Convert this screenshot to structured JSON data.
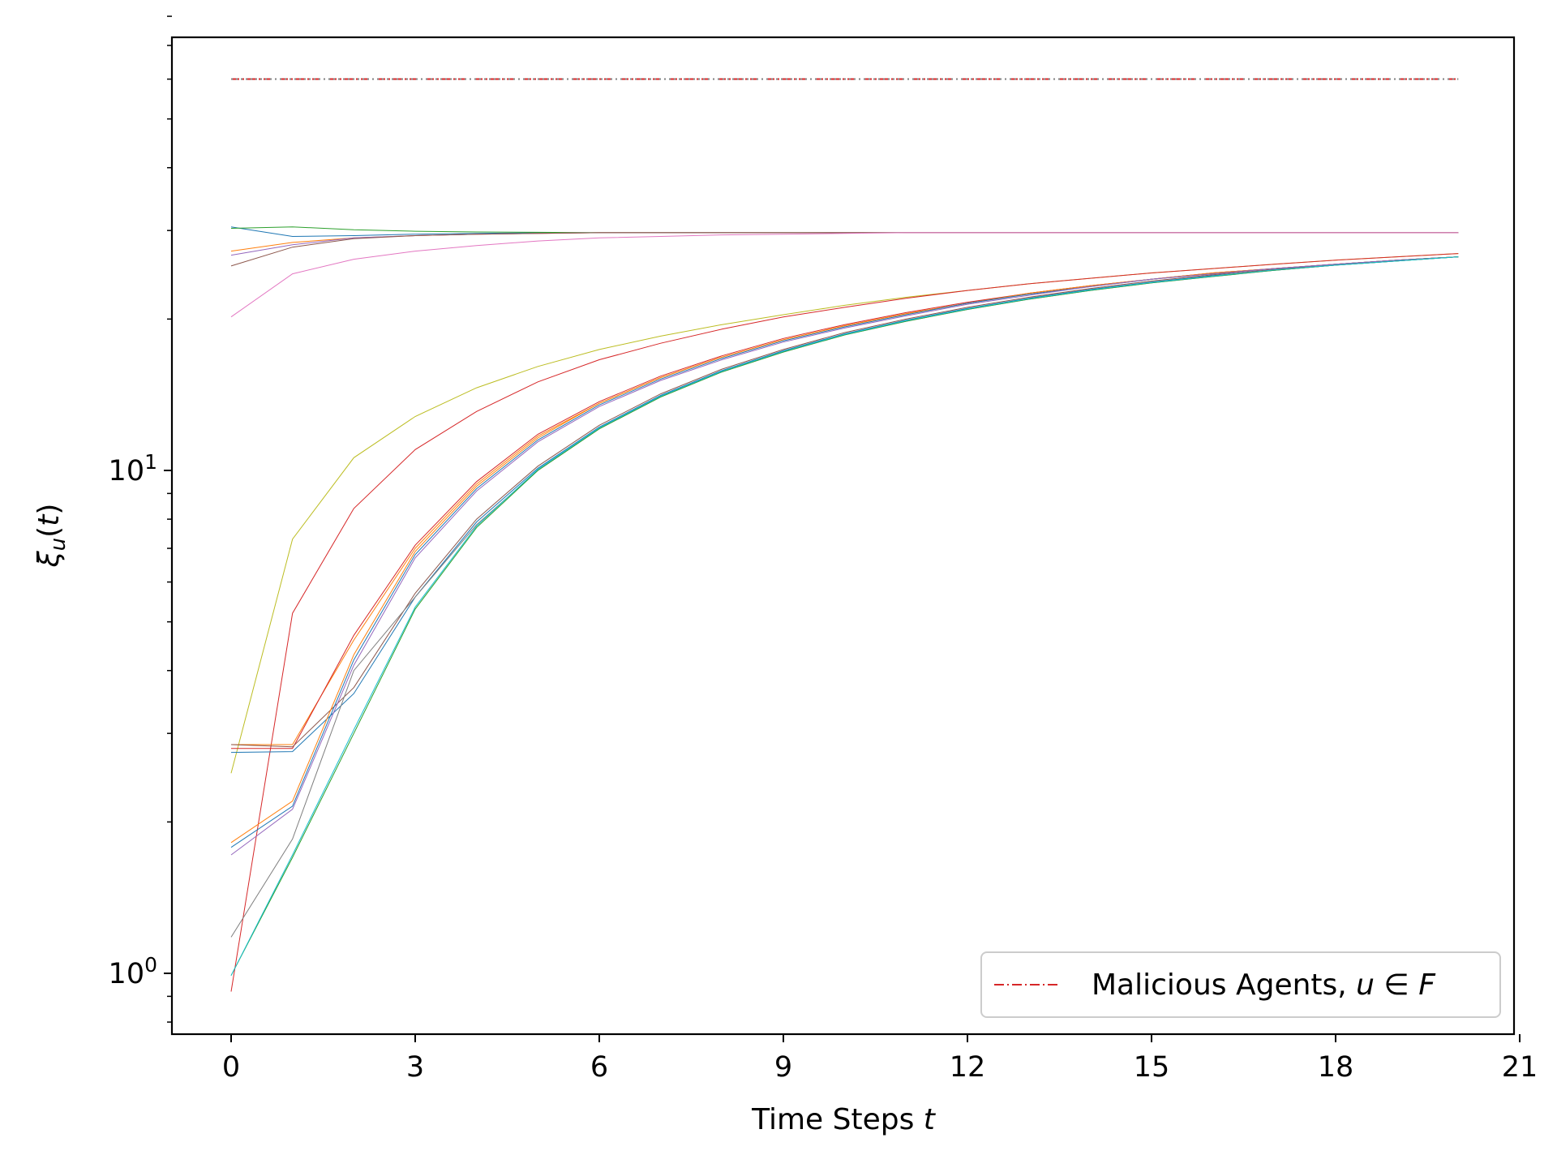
{
  "chart_data": {
    "type": "line",
    "title": "",
    "xlabel": "Time Steps t",
    "ylabel": "ξu(t)",
    "yscale": "log",
    "xlim": [
      -1,
      21
    ],
    "ylim": [
      0.78,
      94
    ],
    "xticks": [
      0,
      3,
      6,
      9,
      12,
      15,
      18,
      21
    ],
    "yticks": [
      {
        "value": 1,
        "base": "10",
        "exp": "0"
      },
      {
        "value": 10,
        "base": "10",
        "exp": "1"
      }
    ],
    "grid": false,
    "legend": {
      "placement": "lower-right",
      "entries": [
        {
          "label": "Malicious Agents, u ∈ F",
          "color": "#d62728",
          "style": "dash-dot"
        }
      ]
    },
    "x": [
      0,
      1,
      2,
      3,
      4,
      5,
      6,
      7,
      8,
      9,
      10,
      11,
      12,
      13,
      14,
      15,
      16,
      17,
      18,
      19,
      20
    ],
    "series": [
      {
        "color": "#d62728",
        "style": "dash-dot",
        "values": [
          60,
          60,
          60,
          60,
          60,
          60,
          60,
          60,
          60,
          60,
          60,
          60,
          60,
          60,
          60,
          60,
          60,
          60,
          60,
          60,
          60
        ]
      },
      {
        "color": "#7f7f7f",
        "style": "dotted",
        "values": [
          60,
          60,
          60,
          60,
          60,
          60,
          60,
          60,
          60,
          60,
          60,
          60,
          60,
          60,
          60,
          60,
          60,
          60,
          60,
          60,
          60
        ]
      },
      {
        "color": "#1f77b4",
        "values": [
          30.5,
          29.2,
          29.3,
          29.5,
          29.6,
          29.7,
          29.7,
          29.7,
          29.7,
          29.7,
          29.7,
          29.7,
          29.7,
          29.7,
          29.7,
          29.7,
          29.7,
          29.7,
          29.7,
          29.7,
          29.7
        ]
      },
      {
        "color": "#2ca02c",
        "values": [
          30.3,
          30.5,
          30.1,
          29.9,
          29.8,
          29.75,
          29.7,
          29.7,
          29.7,
          29.7,
          29.7,
          29.7,
          29.7,
          29.7,
          29.7,
          29.7,
          29.7,
          29.7,
          29.7,
          29.7,
          29.7
        ]
      },
      {
        "color": "#ff7f0e",
        "values": [
          27.3,
          28.4,
          29.0,
          29.3,
          29.5,
          29.6,
          29.7,
          29.7,
          29.7,
          29.7,
          29.7,
          29.7,
          29.7,
          29.7,
          29.7,
          29.7,
          29.7,
          29.7,
          29.7,
          29.7,
          29.7
        ]
      },
      {
        "color": "#9467bd",
        "values": [
          26.8,
          28.1,
          29.0,
          29.3,
          29.5,
          29.6,
          29.7,
          29.7,
          29.7,
          29.7,
          29.7,
          29.7,
          29.7,
          29.7,
          29.7,
          29.7,
          29.7,
          29.7,
          29.7,
          29.7,
          29.7
        ]
      },
      {
        "color": "#8c564b",
        "values": [
          25.5,
          27.8,
          28.9,
          29.3,
          29.5,
          29.6,
          29.7,
          29.7,
          29.7,
          29.7,
          29.7,
          29.7,
          29.7,
          29.7,
          29.7,
          29.7,
          29.7,
          29.7,
          29.7,
          29.7,
          29.7
        ]
      },
      {
        "color": "#e377c2",
        "values": [
          20.2,
          24.6,
          26.3,
          27.3,
          28.0,
          28.6,
          29.0,
          29.2,
          29.4,
          29.5,
          29.6,
          29.7,
          29.7,
          29.7,
          29.7,
          29.7,
          29.7,
          29.7,
          29.7,
          29.7,
          29.7
        ]
      },
      {
        "color": "#bcbd22",
        "values": [
          2.5,
          7.3,
          10.6,
          12.8,
          14.6,
          16.1,
          17.4,
          18.5,
          19.5,
          20.4,
          21.3,
          22.1,
          22.8,
          23.5,
          24.1,
          24.7,
          25.2,
          25.7,
          26.2,
          26.6,
          27.0
        ]
      },
      {
        "color": "#d62728",
        "values": [
          0.92,
          5.2,
          8.4,
          11.0,
          13.1,
          15.0,
          16.6,
          17.9,
          19.1,
          20.2,
          21.1,
          22.0,
          22.8,
          23.5,
          24.1,
          24.7,
          25.2,
          25.7,
          26.2,
          26.6,
          27.0
        ]
      },
      {
        "color": "#ff7f0e",
        "values": [
          2.85,
          2.85,
          4.6,
          7.0,
          9.4,
          11.7,
          13.6,
          15.3,
          16.8,
          18.2,
          19.4,
          20.5,
          21.5,
          22.5,
          23.3,
          24.0,
          24.7,
          25.2,
          25.7,
          26.2,
          26.6
        ]
      },
      {
        "color": "#d62728",
        "values": [
          2.8,
          2.8,
          4.7,
          7.1,
          9.5,
          11.8,
          13.7,
          15.4,
          16.9,
          18.3,
          19.5,
          20.6,
          21.6,
          22.5,
          23.3,
          24.0,
          24.7,
          25.2,
          25.7,
          26.2,
          26.6
        ]
      },
      {
        "color": "#1f77b4",
        "values": [
          2.75,
          2.76,
          3.6,
          5.6,
          7.9,
          10.1,
          12.2,
          14.1,
          15.8,
          17.3,
          18.7,
          19.9,
          21.0,
          22.0,
          22.9,
          23.7,
          24.4,
          25.0,
          25.6,
          26.1,
          26.6
        ]
      },
      {
        "color": "#8c564b",
        "values": [
          2.85,
          2.82,
          3.7,
          5.7,
          8.0,
          10.2,
          12.3,
          14.2,
          15.9,
          17.4,
          18.8,
          20.0,
          21.1,
          22.1,
          23.0,
          23.8,
          24.5,
          25.1,
          25.7,
          26.2,
          26.6
        ]
      },
      {
        "color": "#ff7f0e",
        "values": [
          1.82,
          2.2,
          4.3,
          6.9,
          9.3,
          11.6,
          13.6,
          15.3,
          16.8,
          18.2,
          19.4,
          20.5,
          21.5,
          22.5,
          23.3,
          24.0,
          24.7,
          25.2,
          25.7,
          26.2,
          26.6
        ]
      },
      {
        "color": "#1f77b4",
        "values": [
          1.78,
          2.15,
          4.2,
          6.8,
          9.2,
          11.5,
          13.5,
          15.2,
          16.7,
          18.1,
          19.3,
          20.4,
          21.5,
          22.4,
          23.2,
          24.0,
          24.6,
          25.2,
          25.7,
          26.2,
          26.6
        ]
      },
      {
        "color": "#9467bd",
        "values": [
          1.72,
          2.12,
          4.1,
          6.7,
          9.1,
          11.4,
          13.4,
          15.1,
          16.6,
          18.0,
          19.2,
          20.3,
          21.4,
          22.3,
          23.2,
          24.0,
          24.6,
          25.2,
          25.7,
          26.2,
          26.6
        ]
      },
      {
        "color": "#7f7f7f",
        "values": [
          1.18,
          1.85,
          4.0,
          5.6,
          7.8,
          10.0,
          12.1,
          14.0,
          15.7,
          17.2,
          18.6,
          19.8,
          20.9,
          21.9,
          22.8,
          23.6,
          24.3,
          25.0,
          25.6,
          26.1,
          26.6
        ]
      },
      {
        "color": "#2ca02c",
        "values": [
          0.99,
          1.7,
          3.0,
          5.3,
          7.7,
          10.0,
          12.1,
          14.0,
          15.7,
          17.2,
          18.6,
          19.8,
          20.9,
          21.9,
          22.8,
          23.6,
          24.3,
          25.0,
          25.6,
          26.1,
          26.6
        ]
      },
      {
        "color": "#17becf",
        "values": [
          0.99,
          1.72,
          3.05,
          5.35,
          7.75,
          10.05,
          12.15,
          14.05,
          15.75,
          17.25,
          18.65,
          19.85,
          20.95,
          21.95,
          22.85,
          23.65,
          24.35,
          25.05,
          25.6,
          26.1,
          26.6
        ]
      }
    ]
  }
}
